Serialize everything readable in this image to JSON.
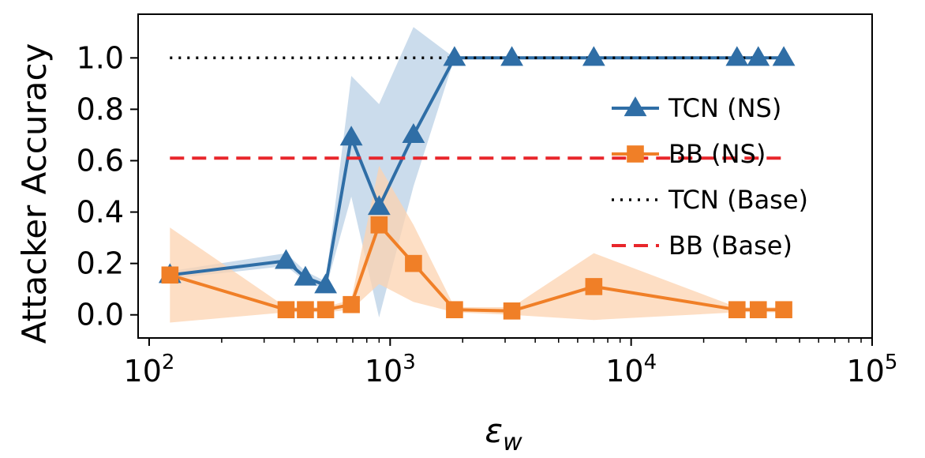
{
  "chart_data": {
    "type": "line",
    "xscale": "log",
    "xlim": [
      90,
      100000
    ],
    "ylim": [
      -0.09,
      1.17
    ],
    "xlabel_base": "ε",
    "xlabel_sub": "w",
    "ylabel": "Attacker Accuracy",
    "x_ticks": [
      {
        "value": 100,
        "base": "10",
        "exp": "2"
      },
      {
        "value": 1000,
        "base": "10",
        "exp": "3"
      },
      {
        "value": 10000,
        "base": "10",
        "exp": "4"
      },
      {
        "value": 100000,
        "base": "10",
        "exp": "5"
      }
    ],
    "y_ticks": [
      {
        "value": 0.0,
        "label": "0.0"
      },
      {
        "value": 0.2,
        "label": "0.2"
      },
      {
        "value": 0.4,
        "label": "0.4"
      },
      {
        "value": 0.6,
        "label": "0.6"
      },
      {
        "value": 0.8,
        "label": "0.8"
      },
      {
        "value": 1.0,
        "label": "1.0"
      }
    ],
    "grid": false,
    "legend_position": "center-right",
    "series": [
      {
        "name": "TCN (NS)",
        "style": "solid",
        "marker": "triangle",
        "color": "#2f6ea6",
        "band_color": "#b9d0e5",
        "x": [
          122,
          370,
          445,
          540,
          690,
          900,
          1250,
          1850,
          3200,
          7000,
          27500,
          33700,
          43000
        ],
        "y": [
          0.155,
          0.21,
          0.145,
          0.115,
          0.69,
          0.42,
          0.7,
          1.0,
          1.0,
          1.0,
          1.0,
          1.0,
          1.0
        ],
        "lower": [
          0.14,
          0.19,
          0.13,
          0.1,
          0.46,
          -0.01,
          0.5,
          1.0,
          1.0,
          1.0,
          1.0,
          1.0,
          1.0
        ],
        "upper": [
          0.17,
          0.24,
          0.17,
          0.13,
          0.93,
          0.82,
          1.12,
          1.0,
          1.0,
          1.0,
          1.0,
          1.0,
          1.0
        ]
      },
      {
        "name": "BB (NS)",
        "style": "solid",
        "marker": "square",
        "color": "#f07f27",
        "band_color": "#fcd3b0",
        "x": [
          122,
          370,
          445,
          540,
          690,
          900,
          1250,
          1850,
          3200,
          7000,
          27500,
          33700,
          43000
        ],
        "y": [
          0.155,
          0.02,
          0.02,
          0.02,
          0.04,
          0.35,
          0.2,
          0.02,
          0.015,
          0.11,
          0.02,
          0.02,
          0.02
        ],
        "lower": [
          -0.03,
          0.01,
          0.01,
          0.01,
          0.02,
          0.12,
          0.05,
          0.01,
          0.0,
          -0.02,
          0.01,
          0.01,
          0.01
        ],
        "upper": [
          0.34,
          0.03,
          0.03,
          0.03,
          0.06,
          0.58,
          0.35,
          0.03,
          0.03,
          0.24,
          0.03,
          0.03,
          0.03
        ]
      },
      {
        "name": "TCN (Base)",
        "style": "dotted",
        "marker": "none",
        "color": "#000000",
        "x": [
          122,
          43000
        ],
        "y": [
          1.0,
          1.0
        ]
      },
      {
        "name": "BB (Base)",
        "style": "dashed",
        "marker": "none",
        "color": "#e8262b",
        "x": [
          122,
          43000
        ],
        "y": [
          0.61,
          0.61
        ]
      }
    ]
  }
}
